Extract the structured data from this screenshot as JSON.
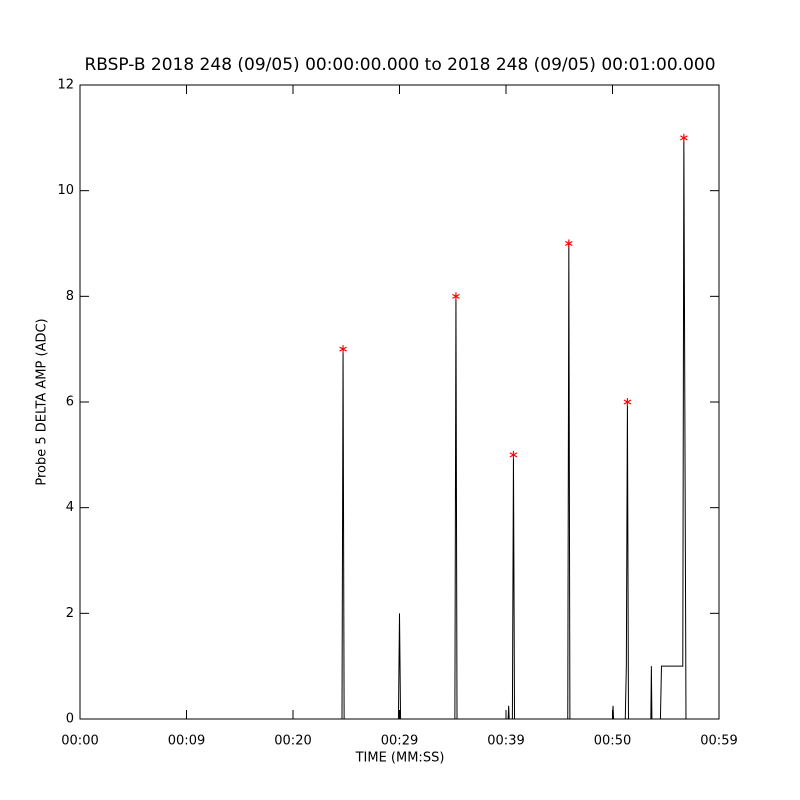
{
  "chart_data": {
    "type": "line",
    "title": "RBSP-B 2018 248 (09/05) 00:00:00.000 to 2018 248 (09/05) 00:01:00.000",
    "xlabel": "TIME (MM:SS)",
    "ylabel": "Probe 5 DELTA AMP (ADC)",
    "xlim": [
      0,
      60
    ],
    "xticks": [
      {
        "value": 0,
        "label": "00:00"
      },
      {
        "value": 10,
        "label": "00:09"
      },
      {
        "value": 20,
        "label": "00:20"
      },
      {
        "value": 30,
        "label": "00:29"
      },
      {
        "value": 40,
        "label": "00:39"
      },
      {
        "value": 50,
        "label": "00:50"
      },
      {
        "value": 60,
        "label": "00:59"
      }
    ],
    "ylim": [
      0,
      12
    ],
    "yticks": [
      0,
      2,
      4,
      6,
      8,
      10,
      12
    ],
    "series": [
      {
        "color": "#000000",
        "x": [
          0,
          24.6,
          24.7,
          24.8,
          29.9,
          30.0,
          30.1,
          35.2,
          35.3,
          35.4,
          40.2,
          40.25,
          40.3,
          40.6,
          40.7,
          40.8,
          45.8,
          45.9,
          46.0,
          50.0,
          50.05,
          50.1,
          51.2,
          51.3,
          51.4,
          51.5,
          53.6,
          53.65,
          53.7,
          54.5,
          54.6,
          56.6,
          56.7,
          56.9
        ],
        "values": [
          0,
          0,
          7,
          0,
          0,
          2,
          0,
          0,
          8,
          0,
          0,
          0.25,
          0,
          0,
          5,
          0,
          0,
          9,
          0,
          0,
          0.25,
          0,
          0,
          1,
          6,
          0,
          0,
          1,
          0,
          0,
          1,
          1,
          11,
          0
        ]
      },
      {
        "color": "#ff0000",
        "marker": "asterisk",
        "x": [
          24.7,
          35.3,
          40.7,
          45.9,
          51.4,
          56.7
        ],
        "values": [
          7,
          8,
          5,
          9,
          6,
          11
        ]
      }
    ]
  }
}
